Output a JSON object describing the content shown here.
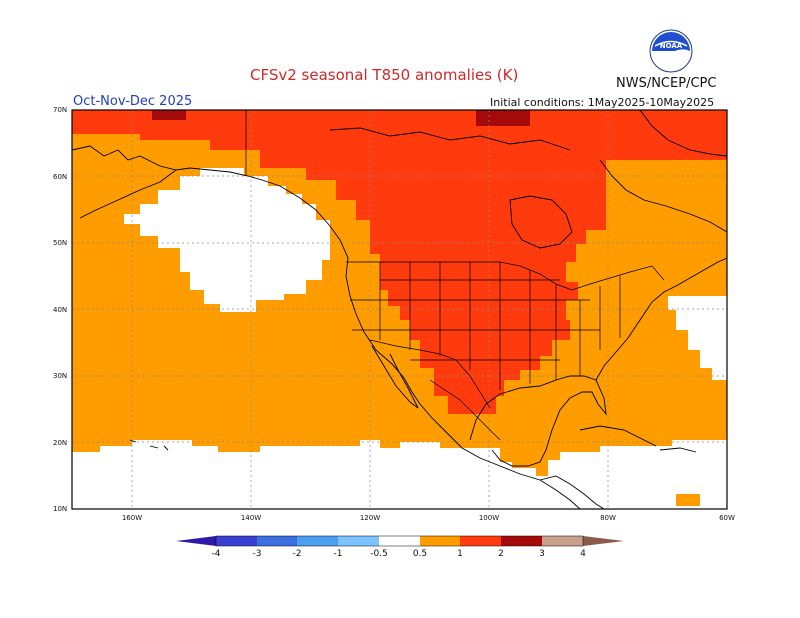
{
  "header": {
    "title": "CFSv2 seasonal T850 anomalies (K)",
    "agency": "NWS/NCEP/CPC",
    "season": "Oct-Nov-Dec 2025",
    "initial_conditions": "Initial conditions: 1May2025-10May2025",
    "logo_text": "NOAA"
  },
  "map": {
    "lat_labels": [
      "70N",
      "60N",
      "50N",
      "40N",
      "30N",
      "20N",
      "10N"
    ],
    "lon_labels": [
      "160W",
      "140W",
      "120W",
      "100W",
      "80W",
      "60W"
    ],
    "colors": {
      "land_border": "#000000",
      "grid": "#888888",
      "cat_05_1": "#ff9d00",
      "cat_1_2": "#ff3b0d",
      "cat_2_3": "#a50a0a",
      "no_anomaly": "#ffffff"
    }
  },
  "colorbar": {
    "labels": [
      "-4",
      "-3",
      "-2",
      "-1",
      "-0.5",
      "0.5",
      "1",
      "2",
      "3",
      "4"
    ],
    "colors": [
      "#2e1aa6",
      "#3a3fd4",
      "#3c6ee0",
      "#4c9ef0",
      "#7cc4ff",
      "#ffffff",
      "#ff9d00",
      "#ff3b0d",
      "#a50a0a",
      "#c8a08c",
      "#8a5a4a"
    ]
  }
}
